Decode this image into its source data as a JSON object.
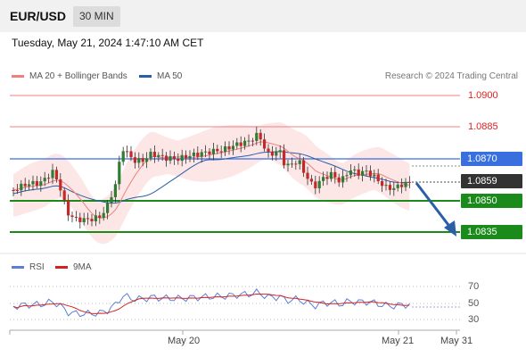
{
  "header": {
    "pair": "EUR/USD",
    "timeframe": "30 MIN"
  },
  "timestamp": "Tuesday, May 21, 2024 1:47:10 AM CET",
  "legend": {
    "ma20": {
      "label": "MA 20 + Bollinger Bands",
      "color": "#f08080"
    },
    "ma50": {
      "label": "MA 50",
      "color": "#2a5fa8"
    }
  },
  "credit": "Research © 2024 Trading Central",
  "levels": {
    "r2": "1.0900",
    "r1": "1.0885",
    "pivot": "1.0870",
    "last": "1.0859",
    "s1": "1.0850",
    "s2": "1.0835"
  },
  "rsi_legend": {
    "rsi": {
      "label": "RSI",
      "color": "#5b7fd6"
    },
    "ma9": {
      "label": "9MA",
      "color": "#d22222"
    }
  },
  "rsi_axis": [
    "70",
    "50",
    "30"
  ],
  "x_axis": [
    "May 20",
    "May 21",
    "May 31"
  ],
  "colors": {
    "up": "#2e7d32",
    "down": "#c62828",
    "support": "#1a8a1a",
    "pivot": "#3a6fe0",
    "resistance": "#f08080",
    "arrow": "#2a5fa8"
  }
}
